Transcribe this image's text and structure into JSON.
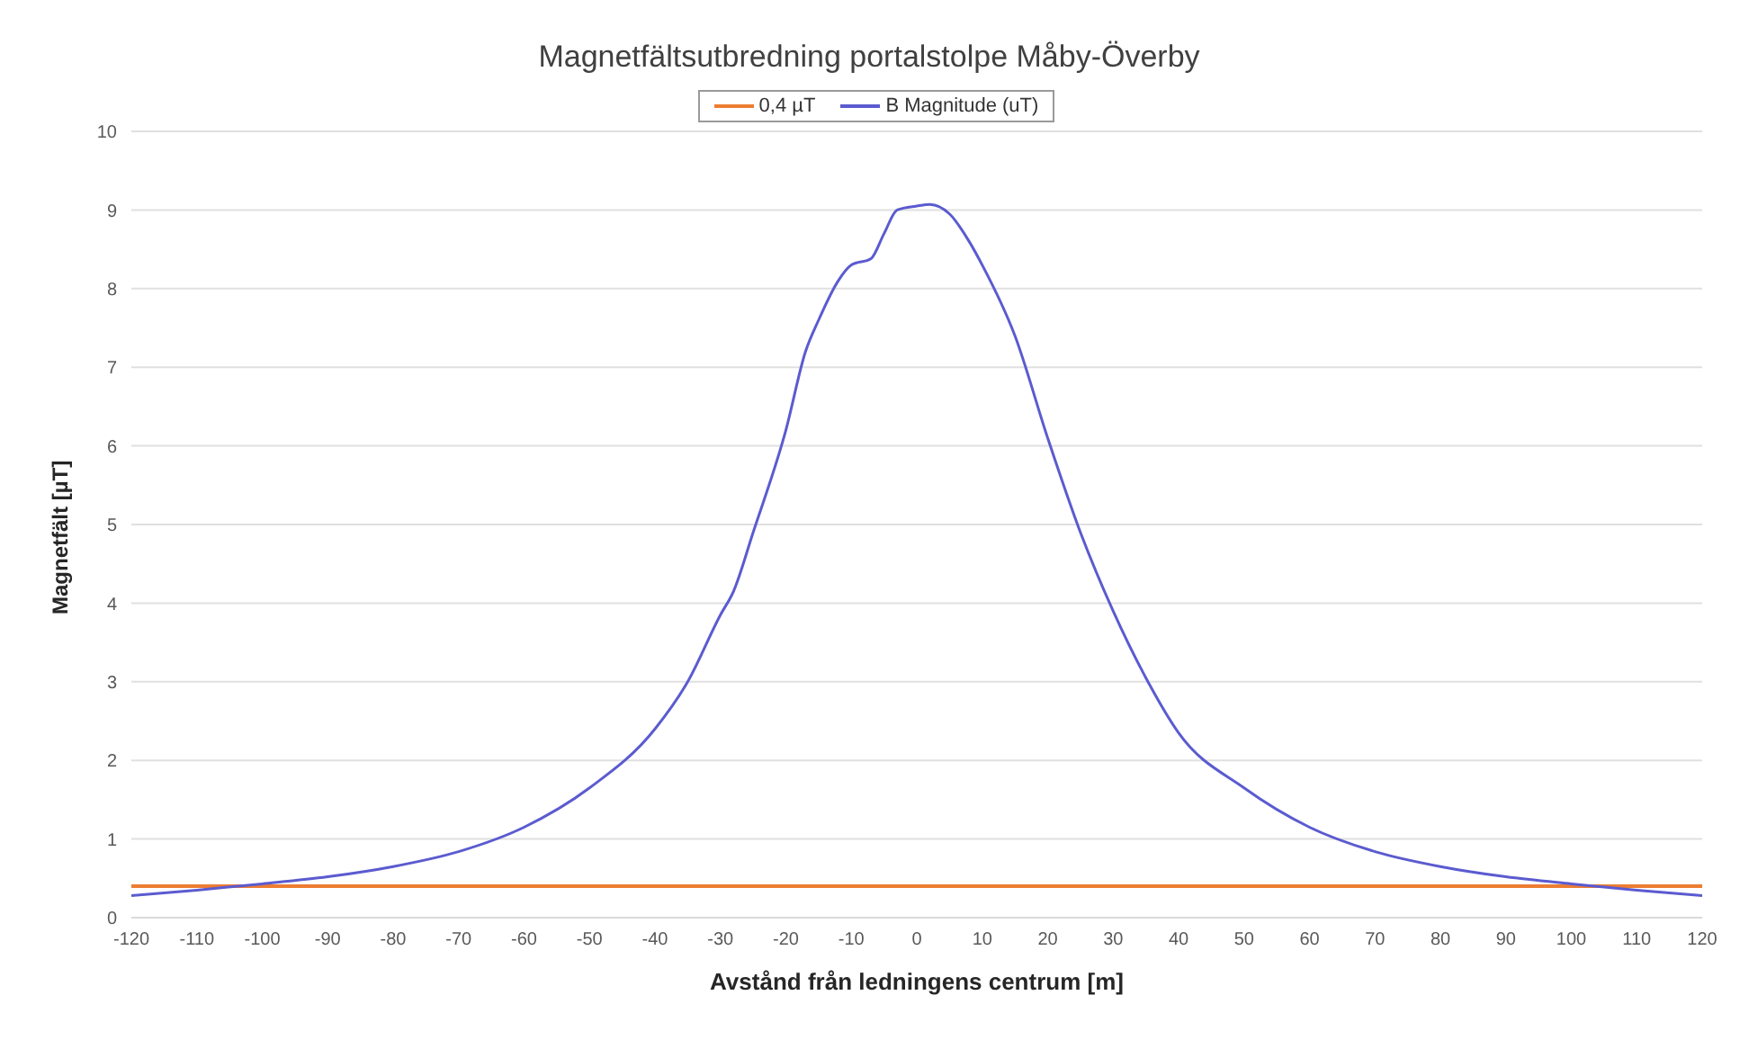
{
  "chart_data": {
    "type": "line",
    "title": "Magnetfältsutbredning portalstolpe Måby-Överby",
    "xlabel": "Avstånd från ledningens centrum [m]",
    "ylabel": "Magnetfält [µT]",
    "series": [
      {
        "name": "0,4 µT",
        "color": "#ed7d31",
        "x": [
          -120,
          120
        ],
        "values": [
          0.4,
          0.4
        ]
      },
      {
        "name": "B Magnitude (uT)",
        "color": "#5b5bd0",
        "x": [
          -120,
          -110,
          -100,
          -90,
          -80,
          -70,
          -60,
          -50,
          -40,
          -35,
          -30,
          -28,
          -25,
          -20,
          -17,
          -15,
          -12,
          -10,
          -7,
          -5,
          -3,
          0,
          2,
          5,
          8,
          10,
          15,
          20,
          25,
          30,
          35,
          40,
          50,
          60,
          70,
          80,
          90,
          100,
          110,
          120
        ],
        "values": [
          0.28,
          0.35,
          0.43,
          0.52,
          0.65,
          0.84,
          1.15,
          1.65,
          2.4,
          3.0,
          3.85,
          4.15,
          4.9,
          6.2,
          7.2,
          7.6,
          8.1,
          8.3,
          8.38,
          8.7,
          9.0,
          9.05,
          9.07,
          8.95,
          8.6,
          8.3,
          7.4,
          6.1,
          4.9,
          3.9,
          3.05,
          2.35,
          1.65,
          1.15,
          0.84,
          0.65,
          0.52,
          0.43,
          0.35,
          0.28
        ]
      }
    ],
    "xlim": [
      -120,
      120
    ],
    "xticks": [
      -120,
      -110,
      -100,
      -90,
      -80,
      -70,
      -60,
      -50,
      -40,
      -30,
      -20,
      -10,
      0,
      10,
      20,
      30,
      40,
      50,
      60,
      70,
      80,
      90,
      100,
      110,
      120
    ],
    "ylim": [
      0,
      10
    ],
    "yticks": [
      0,
      1,
      2,
      3,
      4,
      5,
      6,
      7,
      8,
      9,
      10
    ],
    "grid": "y",
    "legend": "top",
    "marker": "none",
    "line_style": "solid"
  }
}
